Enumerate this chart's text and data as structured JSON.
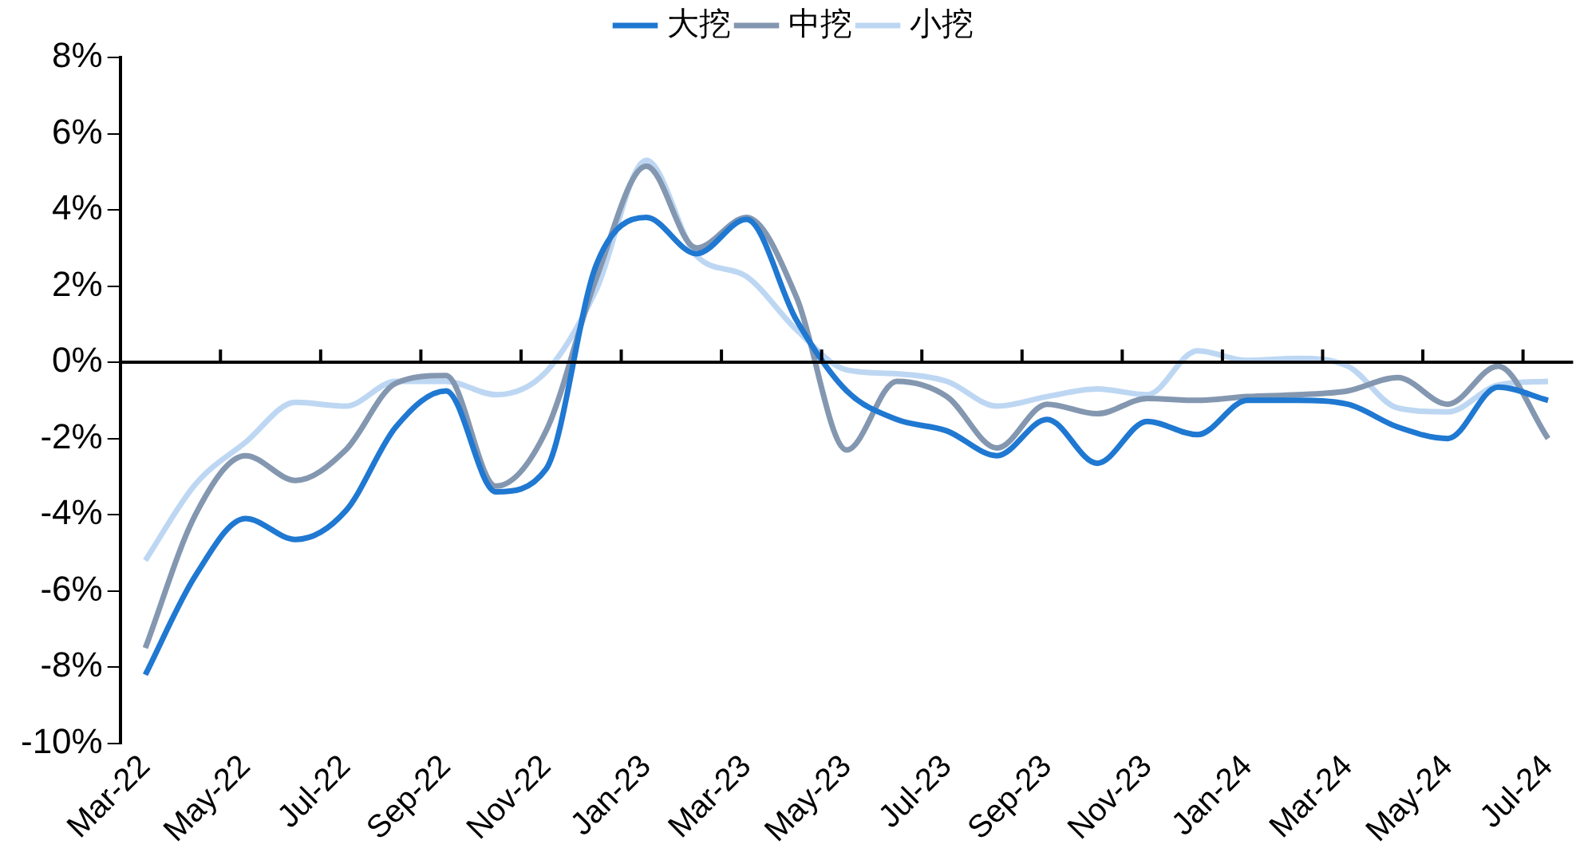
{
  "chart_data": {
    "type": "line",
    "categories": [
      "Mar-22",
      null,
      "May-22",
      null,
      "Jul-22",
      null,
      "Sep-22",
      null,
      "Nov-22",
      null,
      "Jan-23",
      null,
      "Mar-23",
      null,
      "May-23",
      null,
      "Jul-23",
      null,
      "Sep-23",
      null,
      "Nov-23",
      null,
      "Jan-24",
      null,
      "Mar-24",
      null,
      "May-24",
      null,
      "Jul-24"
    ],
    "series": [
      {
        "name": "大挖",
        "color": "#1f78d1",
        "values": [
          -8.2,
          -5.6,
          -4.1,
          -4.65,
          -3.9,
          -1.7,
          -0.75,
          -3.4,
          -2.8,
          2.55,
          3.8,
          2.85,
          3.75,
          1.1,
          -0.75,
          -1.5,
          -1.8,
          -2.45,
          -1.5,
          -2.65,
          -1.55,
          -1.9,
          -1.0,
          -1.0,
          -1.1,
          -1.7,
          -2.0,
          -0.65,
          -1.0
        ]
      },
      {
        "name": "中挖",
        "color": "#8497b0",
        "values": [
          -7.5,
          -4.0,
          -2.45,
          -3.1,
          -2.3,
          -0.55,
          -0.35,
          -3.25,
          -1.8,
          2.2,
          5.15,
          3.0,
          3.8,
          1.7,
          -2.3,
          -0.5,
          -0.9,
          -2.25,
          -1.1,
          -1.35,
          -0.95,
          -1.0,
          -0.9,
          -0.85,
          -0.75,
          -0.4,
          -1.1,
          -0.1,
          -2.0
        ]
      },
      {
        "name": "小挖",
        "color": "#bdd7f3",
        "values": [
          -5.2,
          -3.2,
          -2.1,
          -1.05,
          -1.15,
          -0.5,
          -0.5,
          -0.85,
          -0.25,
          1.9,
          5.3,
          2.8,
          2.25,
          0.85,
          -0.2,
          -0.3,
          -0.5,
          -1.15,
          -0.9,
          -0.7,
          -0.85,
          0.3,
          0.05,
          0.1,
          -0.1,
          -1.2,
          -1.3,
          -0.6,
          -0.5
        ]
      }
    ],
    "ylim": [
      -10,
      8
    ],
    "yticks": [
      {
        "value": -10,
        "label": "-10%"
      },
      {
        "value": -8,
        "label": "-8%"
      },
      {
        "value": -6,
        "label": "-6%"
      },
      {
        "value": -4,
        "label": "-4%"
      },
      {
        "value": -2,
        "label": "-2%"
      },
      {
        "value": 0,
        "label": "0%"
      },
      {
        "value": 2,
        "label": "2%"
      },
      {
        "value": 4,
        "label": "4%"
      },
      {
        "value": 6,
        "label": "6%"
      },
      {
        "value": 8,
        "label": "8%"
      }
    ],
    "ref_lines": [
      {
        "axis": "y",
        "value": 0,
        "color": "#000000"
      }
    ],
    "grid": false,
    "legend": "top",
    "marker": "none",
    "line_style": "solid"
  }
}
